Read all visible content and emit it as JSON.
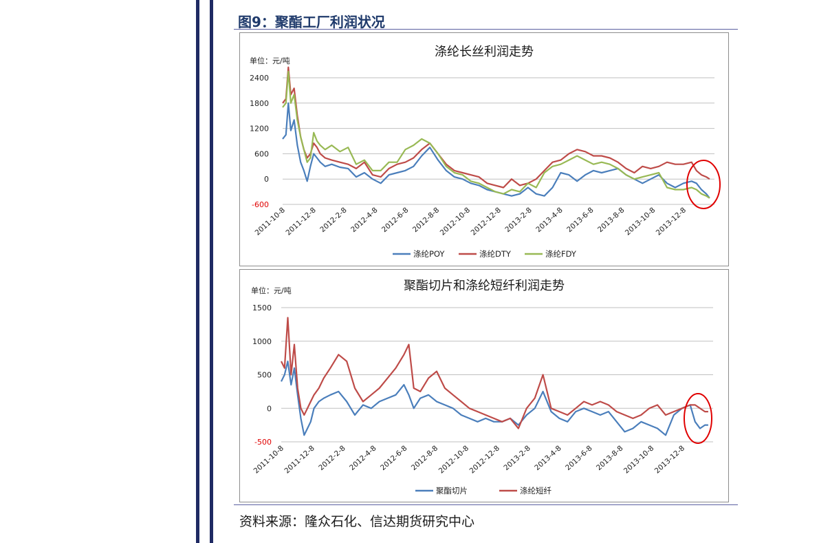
{
  "figure_title": "图9：聚酯工厂利润状况",
  "source": "资料来源：隆众石化、信达期货研究中心",
  "colors": {
    "poy": "#4a7ebb",
    "dty": "#be4b48",
    "fdy": "#98b954",
    "chip": "#4a7ebb",
    "staple": "#be4b48",
    "highlight": "#e00000",
    "negative_tick": "#e00000",
    "grid": "#bfbfbf"
  },
  "chart_data": [
    {
      "type": "line",
      "title": "涤纶长丝利润走势",
      "unit_label": "单位：元/吨",
      "ylim": [
        -600,
        2400
      ],
      "yticks": [
        "2400",
        "1800",
        "1200",
        "600",
        "0",
        "-600"
      ],
      "xlim": [
        0,
        26.4
      ],
      "xtick_labels": [
        "2011-10-8",
        "2011-12-8",
        "2012-2-8",
        "2012-4-8",
        "2012-6-8",
        "2012-8-8",
        "2012-10-8",
        "2012-12-8",
        "2013-2-8",
        "2013-4-8",
        "2013-6-8",
        "2013-8-8",
        "2013-10-8",
        "2013-12-8"
      ],
      "grid": true,
      "legend_position": "bottom",
      "x": [
        0,
        0.2,
        0.35,
        0.5,
        0.7,
        0.9,
        1.1,
        1.3,
        1.5,
        1.7,
        1.9,
        2.1,
        2.3,
        2.6,
        3,
        3.5,
        4,
        4.5,
        5,
        5.5,
        6,
        6.5,
        7,
        7.5,
        8,
        8.5,
        9,
        9.5,
        10,
        10.5,
        11,
        11.5,
        12,
        12.5,
        13,
        13.5,
        14,
        14.5,
        15,
        15.5,
        16,
        16.5,
        17,
        17.5,
        18,
        18.5,
        19,
        19.5,
        20,
        20.5,
        21,
        21.5,
        22,
        22.5,
        23,
        23.5,
        24,
        24.5,
        25,
        25.3,
        25.6,
        25.9,
        26.1
      ],
      "series": [
        {
          "name": "涤纶POY",
          "values": [
            950,
            1050,
            1800,
            1150,
            1400,
            800,
            400,
            200,
            -50,
            300,
            600,
            500,
            400,
            300,
            350,
            280,
            250,
            50,
            150,
            0,
            -100,
            100,
            150,
            200,
            300,
            550,
            750,
            450,
            200,
            50,
            0,
            -100,
            -150,
            -250,
            -300,
            -350,
            -400,
            -350,
            -200,
            -350,
            -400,
            -200,
            150,
            100,
            -50,
            100,
            200,
            150,
            200,
            250,
            100,
            0,
            -100,
            0,
            100,
            -100,
            -200,
            -100,
            -50,
            -100,
            -250,
            -350,
            -450
          ]
        },
        {
          "name": "涤纶DTY",
          "values": [
            1800,
            1900,
            2650,
            2000,
            2150,
            1500,
            1000,
            700,
            500,
            600,
            850,
            750,
            600,
            500,
            450,
            400,
            350,
            250,
            400,
            100,
            50,
            250,
            350,
            400,
            500,
            700,
            850,
            600,
            350,
            200,
            150,
            100,
            50,
            -100,
            -150,
            -200,
            0,
            -150,
            -100,
            0,
            200,
            400,
            450,
            600,
            700,
            650,
            550,
            550,
            500,
            400,
            250,
            150,
            300,
            250,
            300,
            400,
            350,
            350,
            400,
            200,
            100,
            50,
            0
          ]
        },
        {
          "name": "涤纶FDY",
          "values": [
            1700,
            1800,
            2550,
            1800,
            2000,
            1400,
            1000,
            700,
            400,
            500,
            1100,
            900,
            800,
            700,
            800,
            650,
            750,
            350,
            450,
            200,
            200,
            400,
            400,
            700,
            800,
            950,
            850,
            600,
            300,
            150,
            100,
            -50,
            -100,
            -200,
            -300,
            -350,
            -250,
            -300,
            -100,
            -200,
            150,
            300,
            350,
            450,
            550,
            450,
            350,
            400,
            350,
            250,
            100,
            0,
            50,
            100,
            150,
            -200,
            -250,
            -250,
            -200,
            -250,
            -350,
            -400,
            -450
          ]
        }
      ]
    },
    {
      "type": "line",
      "title": "聚酯切片和涤纶短纤利润走势",
      "unit_label": "单位：元/吨",
      "ylim": [
        -500,
        1500
      ],
      "yticks": [
        "1500",
        "1000",
        "500",
        "0",
        "-500"
      ],
      "xlim": [
        0,
        26.4
      ],
      "xtick_labels": [
        "2011-10-8",
        "2011-12-8",
        "2012-2-8",
        "2012-4-8",
        "2012-6-8",
        "2012-8-8",
        "2012-10-8",
        "2012-12-8",
        "2013-2-8",
        "2013-4-8",
        "2013-6-8",
        "2013-8-8",
        "2013-10-8",
        "2013-12-8"
      ],
      "grid": true,
      "legend_position": "bottom",
      "x": [
        0,
        0.2,
        0.4,
        0.6,
        0.8,
        1,
        1.2,
        1.4,
        1.6,
        1.8,
        2,
        2.3,
        2.6,
        3,
        3.5,
        4,
        4.5,
        5,
        5.5,
        6,
        6.5,
        7,
        7.5,
        7.8,
        8.1,
        8.5,
        9,
        9.5,
        10,
        10.5,
        11,
        11.5,
        12,
        12.5,
        13,
        13.5,
        14,
        14.5,
        15,
        15.5,
        16,
        16.5,
        17,
        17.5,
        18,
        18.5,
        19,
        19.5,
        20,
        20.5,
        21,
        21.5,
        22,
        22.5,
        23,
        23.5,
        24,
        24.5,
        25,
        25.3,
        25.6,
        25.9,
        26.1
      ],
      "series": [
        {
          "name": "聚酯切片",
          "values": [
            400,
            500,
            700,
            350,
            600,
            200,
            -150,
            -400,
            -300,
            -200,
            0,
            100,
            150,
            200,
            250,
            100,
            -100,
            50,
            0,
            100,
            150,
            200,
            350,
            200,
            0,
            150,
            200,
            100,
            50,
            0,
            -100,
            -150,
            -200,
            -150,
            -200,
            -200,
            -150,
            -250,
            -100,
            0,
            250,
            -50,
            -150,
            -200,
            -50,
            0,
            -50,
            -100,
            -50,
            -200,
            -350,
            -300,
            -200,
            -250,
            -300,
            -400,
            -100,
            0,
            50,
            -200,
            -300,
            -250,
            -250
          ]
        },
        {
          "name": "涤纶短纤",
          "values": [
            700,
            600,
            1350,
            500,
            950,
            300,
            0,
            -100,
            0,
            100,
            200,
            300,
            450,
            600,
            800,
            700,
            300,
            100,
            200,
            300,
            450,
            600,
            800,
            950,
            300,
            250,
            450,
            550,
            300,
            200,
            100,
            0,
            -50,
            -100,
            -150,
            -200,
            -150,
            -300,
            0,
            150,
            500,
            0,
            -50,
            -100,
            0,
            100,
            50,
            100,
            50,
            -50,
            -100,
            -150,
            -100,
            0,
            50,
            -100,
            -50,
            0,
            50,
            50,
            0,
            -50,
            -50
          ]
        }
      ]
    }
  ]
}
